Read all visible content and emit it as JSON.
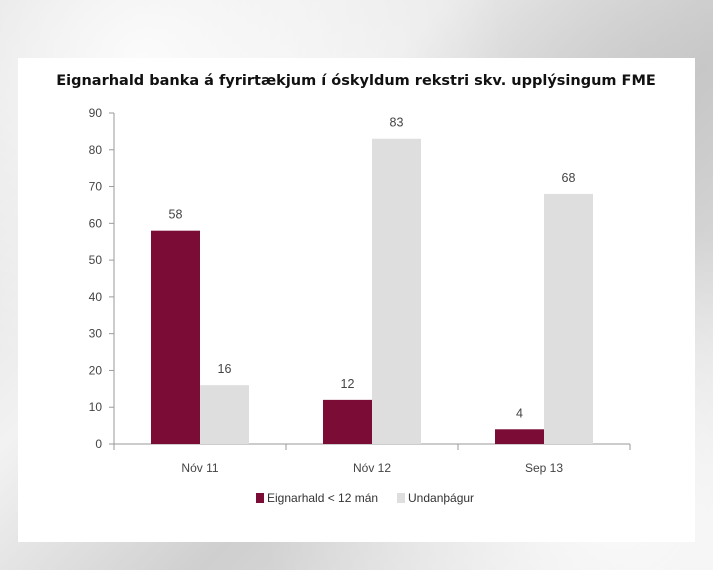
{
  "chart_data": {
    "type": "bar",
    "title": "Eignarhald banka á fyrirtækjum í óskyldum rekstri skv. upplýsingum FME",
    "xlabel": "",
    "ylabel": "",
    "categories": [
      "Nóv 11",
      "Nóv 12",
      "Sep 13"
    ],
    "series": [
      {
        "name": "Eignarhald < 12 mán",
        "values": [
          58,
          12,
          4
        ],
        "color": "#7b0c36"
      },
      {
        "name": "Undanþágur",
        "values": [
          16,
          83,
          68
        ],
        "color": "#dedede"
      }
    ],
    "ylim": [
      0,
      90
    ],
    "yticks": [
      0,
      10,
      20,
      30,
      40,
      50,
      60,
      70,
      80,
      90
    ],
    "grid": false,
    "legend": "bottom-center",
    "data_labels": true
  }
}
